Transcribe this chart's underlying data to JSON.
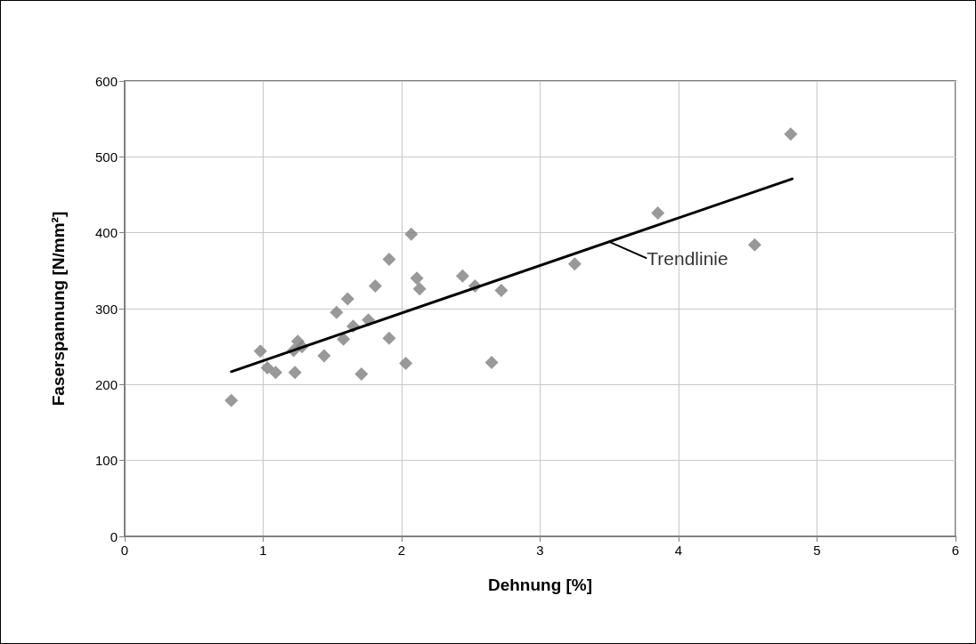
{
  "chart_data": {
    "type": "scatter",
    "xlabel": "Dehnung [%]",
    "ylabel": "Faserspannung [N/mm²]",
    "xlim": [
      0,
      6
    ],
    "xticks": [
      0,
      1,
      2,
      3,
      4,
      5,
      6
    ],
    "ylim": [
      0,
      600
    ],
    "yticks": [
      0,
      100,
      200,
      300,
      400,
      500,
      600
    ],
    "grid": true,
    "marker": "diamond",
    "series": [
      {
        "color": "#808080",
        "x": [
          0.77,
          0.98,
          1.03,
          1.09,
          1.23,
          1.22,
          1.25,
          1.28,
          1.44,
          1.53,
          1.58,
          1.61,
          1.65,
          1.71,
          1.76,
          1.81,
          1.91,
          1.91,
          2.03,
          2.07,
          2.11,
          2.13,
          2.44,
          2.53,
          2.65,
          2.72,
          3.25,
          3.85,
          4.55,
          4.81
        ],
        "values": [
          179,
          244,
          222,
          216,
          216,
          245,
          257,
          250,
          238,
          295,
          260,
          313,
          277,
          214,
          285,
          330,
          365,
          261,
          228,
          398,
          340,
          326,
          343,
          330,
          229,
          324,
          359,
          426,
          384,
          530
        ]
      },
      {
        "type": "line",
        "color": "#000000",
        "x": [
          0.77,
          4.82
        ],
        "values": [
          217,
          471
        ],
        "marker": "none"
      }
    ],
    "annotations": [
      {
        "text": "Trendlinie",
        "x": 3.5,
        "y": 388
      }
    ]
  }
}
